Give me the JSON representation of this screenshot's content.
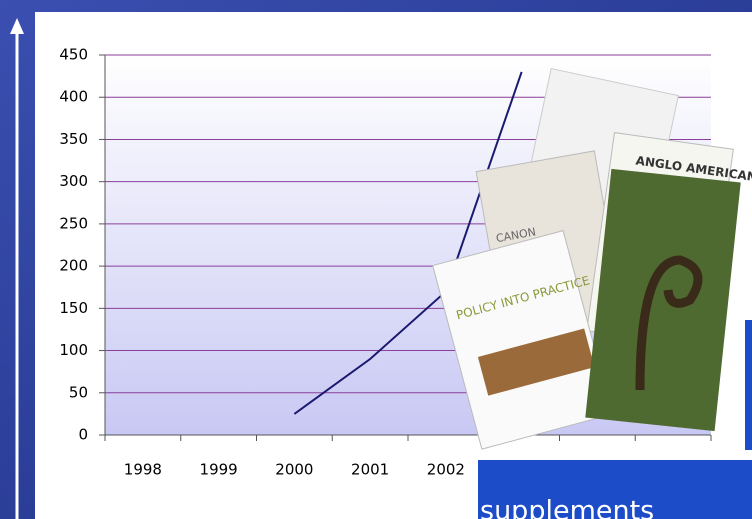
{
  "chart_data": {
    "type": "line",
    "categories": [
      "1998",
      "1999",
      "2000",
      "2001",
      "2002",
      null,
      null,
      null
    ],
    "series": [
      {
        "name": null,
        "color": "#1a1a70",
        "values": [
          null,
          null,
          25,
          90,
          170,
          430,
          null,
          null
        ]
      }
    ],
    "ylim": [
      0,
      450
    ],
    "yticks": [
      0,
      50,
      100,
      150,
      200,
      250,
      300,
      350,
      400,
      450
    ],
    "grid": true,
    "grid_color": "#8a3f9a"
  },
  "covers": [
    "POLICY INTO PRACTICE",
    "CANON",
    "ANGLO AMERICAN"
  ],
  "caption": "supplements"
}
